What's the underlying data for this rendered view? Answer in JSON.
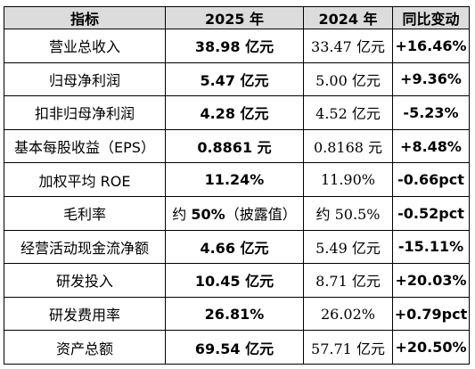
{
  "header": {
    "metric": "指标",
    "y2025": "2025 年",
    "y2024": "2024 年",
    "change": "同比变动"
  },
  "rows": [
    {
      "metric": "营业总收入",
      "y2025": "38.98 亿元",
      "y2024": "33.47 亿元",
      "change": "+16.46%"
    },
    {
      "metric": "归母净利润",
      "y2025": "5.47 亿元",
      "y2024": "5.00 亿元",
      "change": "+9.36%"
    },
    {
      "metric": "扣非归母净利润",
      "y2025": "4.28 亿元",
      "y2024": "4.52 亿元",
      "change": "-5.23%"
    },
    {
      "metric": "基本每股收益（EPS）",
      "y2025": "0.8861 元",
      "y2024": "0.8168 元",
      "change": "+8.48%"
    },
    {
      "metric": "加权平均 ROE",
      "y2025": "11.24%",
      "y2024": "11.90%",
      "change": "-0.66pct"
    },
    {
      "metric": "毛利率",
      "y2025_prefix": "约 ",
      "y2025_value": "50%",
      "y2025_note": "（披露值）",
      "y2024": "约 50.5%",
      "change": "-0.52pct"
    },
    {
      "metric": "经营活动现金流净额",
      "y2025": "4.66 亿元",
      "y2024": "5.49 亿元",
      "change": "-15.11%"
    },
    {
      "metric": "研发投入",
      "y2025": "10.45 亿元",
      "y2024": "8.71 亿元",
      "change": "+20.03%"
    },
    {
      "metric": "研发费用率",
      "y2025": "26.81%",
      "y2024": "26.02%",
      "change": "+0.79pct"
    },
    {
      "metric": "资产总额",
      "y2025": "69.54 亿元",
      "y2024": "57.71 亿元",
      "change": "+20.50%"
    }
  ]
}
